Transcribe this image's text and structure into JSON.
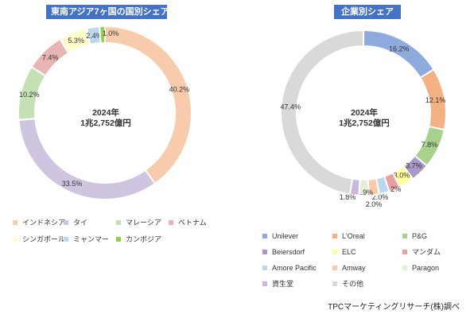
{
  "chart_data": [
    {
      "type": "pie",
      "title": "東南アジア7ヶ国の国別シェア",
      "center_label": [
        "2024年",
        "1兆2,752億円"
      ],
      "categories": [
        "インドネシア",
        "タイ",
        "マレーシア",
        "ベトナム",
        "シンガポール",
        "ミャンマー",
        "カンボジア"
      ],
      "values": [
        40.2,
        33.5,
        10.2,
        7.4,
        5.3,
        2.4,
        1.0
      ],
      "value_labels": [
        "40.2%",
        "33.5%",
        "10.2%",
        "7.4%",
        "5.3%",
        "2.4%",
        "1.0%"
      ],
      "colors": [
        "#f8cbad",
        "#cfc5e0",
        "#c5e0b4",
        "#e8b4b4",
        "#ffffcc",
        "#bdd7ee",
        "#92d050"
      ],
      "legend_position": "bottom"
    },
    {
      "type": "pie",
      "title": "企業別シェア",
      "center_label": [
        "2024年",
        "1兆2,752億円"
      ],
      "categories": [
        "Unilever",
        "L'Oreal",
        "P&G",
        "Beiersdorf",
        "ELC",
        "マンダム",
        "Amore Pacific",
        "Amway",
        "Paragon",
        "資生堂",
        "その他"
      ],
      "values": [
        16.2,
        12.1,
        7.8,
        3.7,
        3.0,
        2.2,
        2.0,
        2.0,
        1.9,
        1.8,
        47.4
      ],
      "value_labels": [
        "16.2%",
        "12.1%",
        "7.8%",
        "3.7%",
        "3.0%",
        "2.2%",
        "2.0%",
        "2.0%",
        "1.9%",
        "1.8%",
        "47.4%"
      ],
      "colors": [
        "#8faadc",
        "#f4b183",
        "#a9d18e",
        "#a999c8",
        "#ffffa0",
        "#e8a0a0",
        "#bdd7ee",
        "#f8cbad",
        "#e2efda",
        "#c9b8dc",
        "#d9d9d9"
      ],
      "legend_position": "bottom"
    }
  ],
  "source": "TPCマーケティングリサーチ(株)調べ"
}
